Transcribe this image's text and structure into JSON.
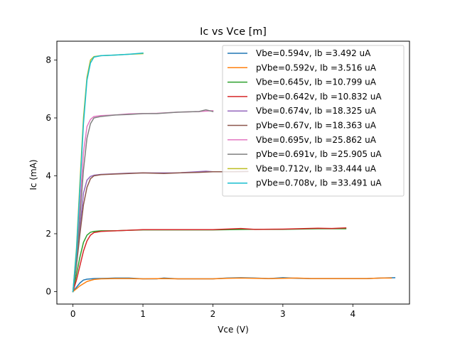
{
  "chart_data": {
    "type": "line",
    "title": "Ic vs Vce [m]",
    "xlabel": "Vce (V)",
    "ylabel": "Ic (mA)",
    "xlim": [
      -0.23,
      4.81
    ],
    "ylim": [
      -0.43,
      8.65
    ],
    "xticks": [
      0,
      1,
      2,
      3,
      4
    ],
    "yticks": [
      0,
      2,
      4,
      6,
      8
    ],
    "grid": false,
    "legend_position": "top-right",
    "series": [
      {
        "name": "Vbe=0.594v, Ib =3.492 uA",
        "color": "#1f77b4",
        "points": [
          [
            0,
            0
          ],
          [
            0.05,
            0.15
          ],
          [
            0.1,
            0.3
          ],
          [
            0.15,
            0.4
          ],
          [
            0.2,
            0.43
          ],
          [
            0.3,
            0.45
          ],
          [
            0.5,
            0.46
          ],
          [
            0.6,
            0.47
          ],
          [
            0.8,
            0.47
          ],
          [
            1.0,
            0.44
          ],
          [
            1.2,
            0.44
          ],
          [
            1.3,
            0.47
          ],
          [
            1.5,
            0.44
          ],
          [
            2.0,
            0.44
          ],
          [
            2.2,
            0.47
          ],
          [
            2.4,
            0.48
          ],
          [
            2.6,
            0.47
          ],
          [
            2.8,
            0.45
          ],
          [
            3.0,
            0.48
          ],
          [
            3.2,
            0.46
          ],
          [
            3.4,
            0.45
          ],
          [
            3.8,
            0.45
          ],
          [
            4.2,
            0.45
          ],
          [
            4.4,
            0.47
          ],
          [
            4.6,
            0.48
          ]
        ]
      },
      {
        "name": "pVbe=0.592v, Ib =3.516 uA",
        "color": "#ff7f0e",
        "points": [
          [
            0,
            0
          ],
          [
            0.05,
            0.1
          ],
          [
            0.1,
            0.2
          ],
          [
            0.2,
            0.35
          ],
          [
            0.3,
            0.42
          ],
          [
            0.4,
            0.44
          ],
          [
            0.6,
            0.45
          ],
          [
            0.8,
            0.45
          ],
          [
            1.0,
            0.44
          ],
          [
            1.3,
            0.45
          ],
          [
            1.5,
            0.44
          ],
          [
            2.0,
            0.44
          ],
          [
            2.2,
            0.46
          ],
          [
            2.4,
            0.47
          ],
          [
            2.6,
            0.46
          ],
          [
            2.8,
            0.45
          ],
          [
            3.0,
            0.46
          ],
          [
            3.2,
            0.47
          ],
          [
            3.4,
            0.45
          ],
          [
            3.8,
            0.45
          ],
          [
            4.2,
            0.45
          ],
          [
            4.4,
            0.47
          ],
          [
            4.55,
            0.47
          ]
        ]
      },
      {
        "name": "Vbe=0.645v, Ib =10.799 uA",
        "color": "#2ca02c",
        "points": [
          [
            0,
            0
          ],
          [
            0.05,
            0.6
          ],
          [
            0.1,
            1.2
          ],
          [
            0.15,
            1.7
          ],
          [
            0.2,
            1.95
          ],
          [
            0.25,
            2.05
          ],
          [
            0.3,
            2.08
          ],
          [
            0.4,
            2.1
          ],
          [
            0.6,
            2.1
          ],
          [
            0.8,
            2.12
          ],
          [
            1.0,
            2.13
          ],
          [
            1.5,
            2.13
          ],
          [
            2.0,
            2.13
          ],
          [
            2.5,
            2.15
          ],
          [
            3.0,
            2.15
          ],
          [
            3.5,
            2.17
          ],
          [
            3.9,
            2.17
          ]
        ]
      },
      {
        "name": "pVbe=0.642v, Ib =10.832 uA",
        "color": "#d62728",
        "points": [
          [
            0,
            0
          ],
          [
            0.05,
            0.4
          ],
          [
            0.1,
            0.9
          ],
          [
            0.15,
            1.4
          ],
          [
            0.2,
            1.75
          ],
          [
            0.25,
            1.95
          ],
          [
            0.3,
            2.04
          ],
          [
            0.4,
            2.08
          ],
          [
            0.6,
            2.1
          ],
          [
            0.8,
            2.12
          ],
          [
            1.0,
            2.14
          ],
          [
            1.5,
            2.14
          ],
          [
            2.0,
            2.14
          ],
          [
            2.4,
            2.18
          ],
          [
            2.6,
            2.15
          ],
          [
            3.0,
            2.16
          ],
          [
            3.5,
            2.19
          ],
          [
            3.7,
            2.18
          ],
          [
            3.9,
            2.2
          ]
        ]
      },
      {
        "name": "Vbe=0.674v, Ib =18.325 uA",
        "color": "#9467bd",
        "points": [
          [
            0,
            0
          ],
          [
            0.05,
            1.0
          ],
          [
            0.1,
            2.2
          ],
          [
            0.15,
            3.4
          ],
          [
            0.2,
            3.85
          ],
          [
            0.25,
            3.98
          ],
          [
            0.3,
            4.02
          ],
          [
            0.4,
            4.05
          ],
          [
            0.6,
            4.07
          ],
          [
            0.8,
            4.09
          ],
          [
            1.0,
            4.1
          ],
          [
            1.5,
            4.1
          ],
          [
            1.9,
            4.16
          ],
          [
            2.0,
            4.14
          ],
          [
            2.2,
            4.14
          ],
          [
            2.5,
            4.15
          ]
        ]
      },
      {
        "name": "pVbe=0.67v, Ib =18.363 uA",
        "color": "#8c564b",
        "points": [
          [
            0,
            0
          ],
          [
            0.05,
            0.9
          ],
          [
            0.1,
            2.0
          ],
          [
            0.15,
            3.0
          ],
          [
            0.2,
            3.6
          ],
          [
            0.25,
            3.9
          ],
          [
            0.3,
            4.0
          ],
          [
            0.4,
            4.04
          ],
          [
            0.6,
            4.06
          ],
          [
            0.8,
            4.08
          ],
          [
            1.0,
            4.1
          ],
          [
            1.3,
            4.08
          ],
          [
            1.5,
            4.1
          ],
          [
            1.8,
            4.12
          ],
          [
            2.0,
            4.14
          ],
          [
            2.3,
            4.14
          ],
          [
            2.5,
            4.15
          ]
        ]
      },
      {
        "name": "Vbe=0.695v, Ib =25.862 uA",
        "color": "#e377c2",
        "points": [
          [
            0,
            0
          ],
          [
            0.05,
            1.2
          ],
          [
            0.1,
            3.0
          ],
          [
            0.15,
            4.8
          ],
          [
            0.2,
            5.7
          ],
          [
            0.25,
            5.95
          ],
          [
            0.3,
            6.05
          ],
          [
            0.4,
            6.08
          ],
          [
            0.6,
            6.1
          ],
          [
            0.8,
            6.14
          ],
          [
            1.0,
            6.15
          ],
          [
            1.2,
            6.16
          ],
          [
            1.5,
            6.2
          ],
          [
            1.8,
            6.22
          ],
          [
            2.0,
            6.25
          ]
        ]
      },
      {
        "name": "pVbe=0.691v, Ib =25.905 uA",
        "color": "#7f7f7f",
        "points": [
          [
            0,
            0
          ],
          [
            0.05,
            1.0
          ],
          [
            0.1,
            2.6
          ],
          [
            0.15,
            4.2
          ],
          [
            0.2,
            5.3
          ],
          [
            0.25,
            5.8
          ],
          [
            0.3,
            6.0
          ],
          [
            0.4,
            6.05
          ],
          [
            0.6,
            6.1
          ],
          [
            0.8,
            6.12
          ],
          [
            1.0,
            6.15
          ],
          [
            1.2,
            6.15
          ],
          [
            1.5,
            6.2
          ],
          [
            1.8,
            6.22
          ],
          [
            1.9,
            6.28
          ],
          [
            2.0,
            6.22
          ]
        ]
      },
      {
        "name": "Vbe=0.712v, Ib =33.444 uA",
        "color": "#bcbd22",
        "points": [
          [
            0,
            0
          ],
          [
            0.05,
            1.5
          ],
          [
            0.1,
            3.8
          ],
          [
            0.15,
            6.0
          ],
          [
            0.2,
            7.4
          ],
          [
            0.25,
            8.0
          ],
          [
            0.3,
            8.12
          ],
          [
            0.4,
            8.15
          ],
          [
            0.6,
            8.17
          ],
          [
            0.8,
            8.2
          ],
          [
            1.0,
            8.22
          ]
        ]
      },
      {
        "name": "pVbe=0.708v, Ib =33.491 uA",
        "color": "#17becf",
        "points": [
          [
            0,
            0
          ],
          [
            0.05,
            1.4
          ],
          [
            0.1,
            3.6
          ],
          [
            0.15,
            5.8
          ],
          [
            0.2,
            7.3
          ],
          [
            0.25,
            7.9
          ],
          [
            0.3,
            8.1
          ],
          [
            0.4,
            8.15
          ],
          [
            0.6,
            8.17
          ],
          [
            0.8,
            8.2
          ],
          [
            1.0,
            8.24
          ]
        ]
      }
    ]
  }
}
